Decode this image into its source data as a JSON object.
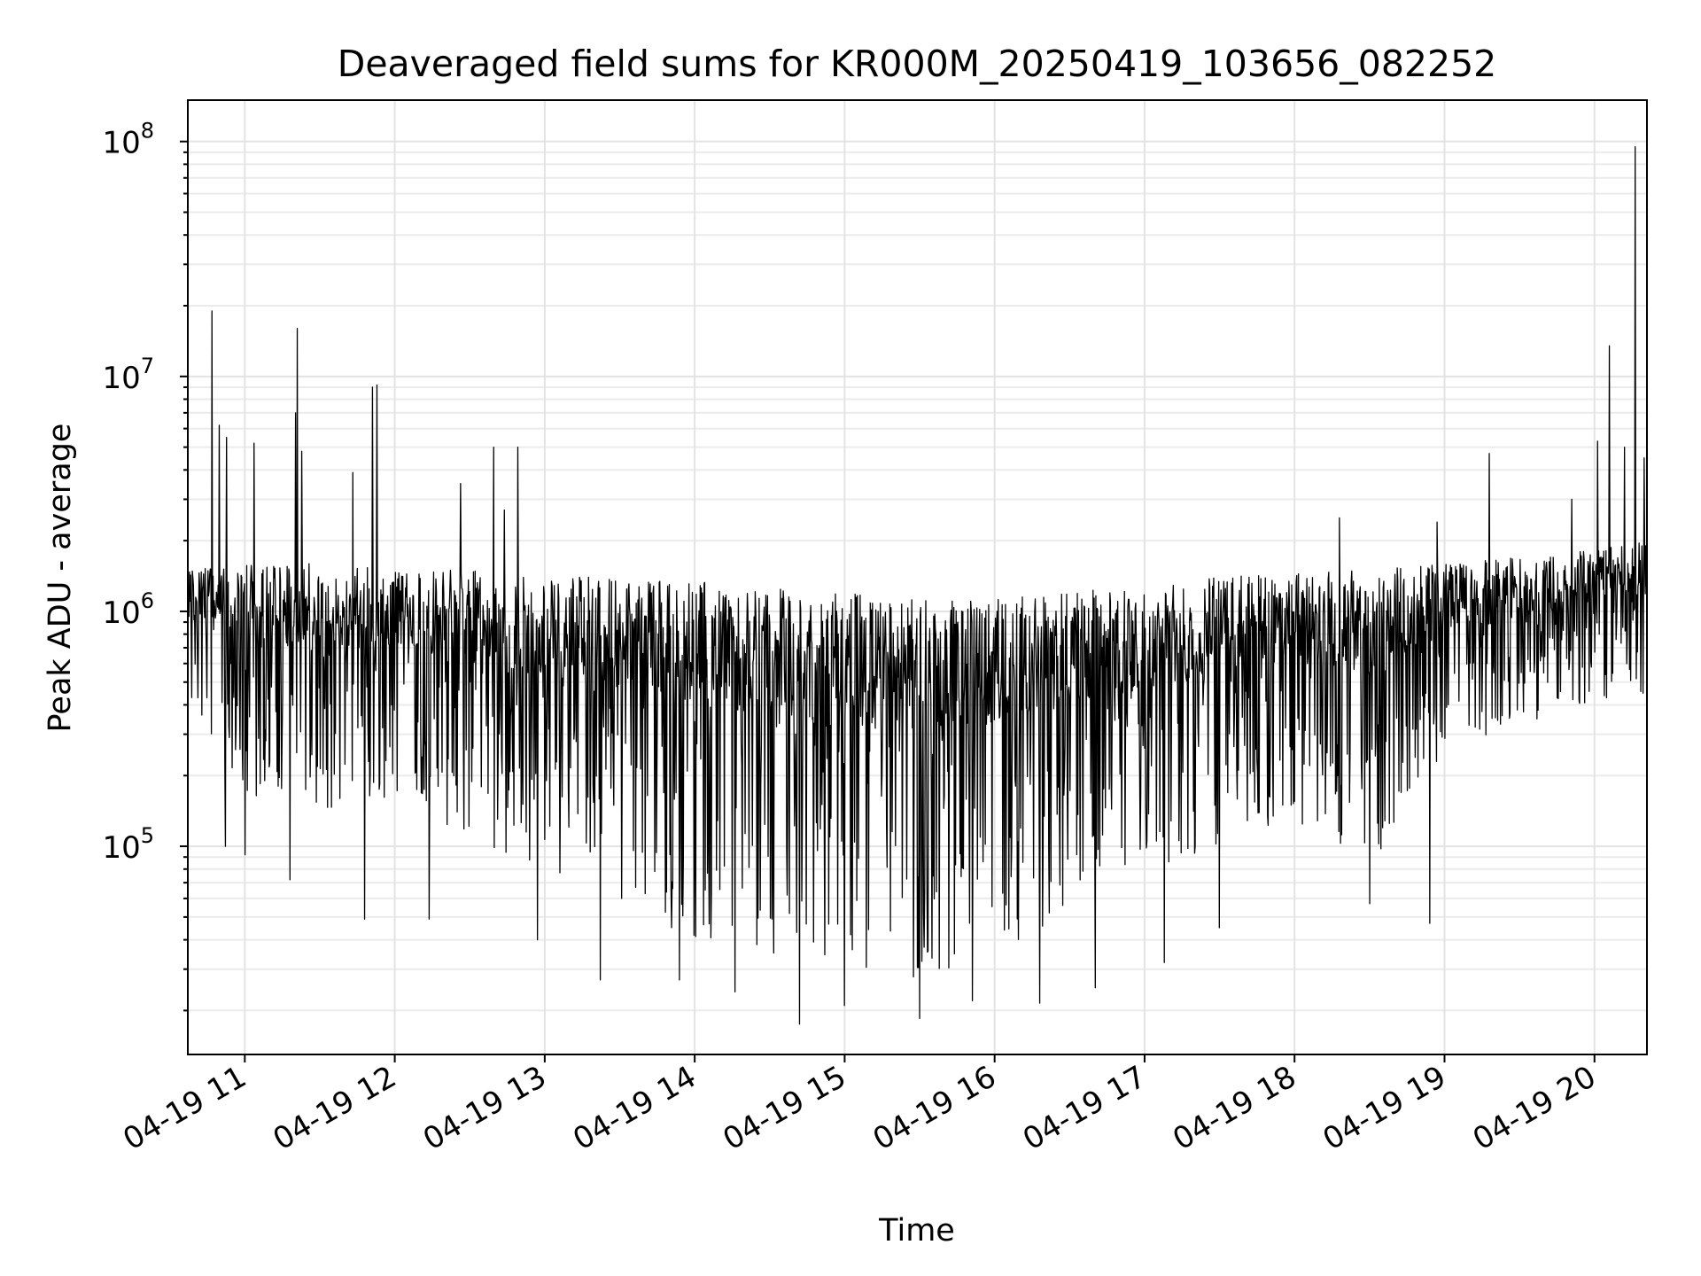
{
  "chart_data": {
    "type": "line",
    "title": "Deaveraged field sums for KR000M_20250419_103656_082252",
    "xlabel": "Time",
    "ylabel": "Peak ADU - average",
    "yscale": "log",
    "grid": true,
    "x_range": [
      "04-19 10:37",
      "04-19 20:21"
    ],
    "ylim": [
      13000,
      150000000
    ],
    "x_ticks": [
      {
        "label": "04-19 11",
        "hour": 11
      },
      {
        "label": "04-19 12",
        "hour": 12
      },
      {
        "label": "04-19 13",
        "hour": 13
      },
      {
        "label": "04-19 14",
        "hour": 14
      },
      {
        "label": "04-19 15",
        "hour": 15
      },
      {
        "label": "04-19 16",
        "hour": 16
      },
      {
        "label": "04-19 17",
        "hour": 17
      },
      {
        "label": "04-19 18",
        "hour": 18
      },
      {
        "label": "04-19 19",
        "hour": 19
      },
      {
        "label": "04-19 20",
        "hour": 20
      }
    ],
    "y_ticks": [
      {
        "base": "10",
        "exp": "5",
        "value": 100000
      },
      {
        "base": "10",
        "exp": "6",
        "value": 1000000
      },
      {
        "base": "10",
        "exp": "7",
        "value": 10000000
      },
      {
        "base": "10",
        "exp": "8",
        "value": 100000000
      }
    ],
    "series": [
      {
        "color": "#000000",
        "envelope": [
          {
            "hour": 10.62,
            "high": 1500000,
            "low": 400000
          },
          {
            "hour": 11.0,
            "high": 1600000,
            "low": 150000
          },
          {
            "hour": 11.5,
            "high": 1600000,
            "low": 130000
          },
          {
            "hour": 12.0,
            "high": 1500000,
            "low": 150000
          },
          {
            "hour": 12.5,
            "high": 1500000,
            "low": 110000
          },
          {
            "hour": 13.0,
            "high": 1400000,
            "low": 70000
          },
          {
            "hour": 13.5,
            "high": 1400000,
            "low": 55000
          },
          {
            "hour": 14.0,
            "high": 1350000,
            "low": 40000
          },
          {
            "hour": 14.5,
            "high": 1250000,
            "low": 32000
          },
          {
            "hour": 15.0,
            "high": 1200000,
            "low": 28000
          },
          {
            "hour": 15.5,
            "high": 1150000,
            "low": 27000
          },
          {
            "hour": 16.0,
            "high": 1150000,
            "low": 35000
          },
          {
            "hour": 16.5,
            "high": 1200000,
            "low": 50000
          },
          {
            "hour": 17.0,
            "high": 1300000,
            "low": 70000
          },
          {
            "hour": 17.5,
            "high": 1400000,
            "low": 100000
          },
          {
            "hour": 18.0,
            "high": 1500000,
            "low": 130000
          },
          {
            "hour": 18.5,
            "high": 1500000,
            "low": 80000
          },
          {
            "hour": 19.0,
            "high": 1600000,
            "low": 260000
          },
          {
            "hour": 19.5,
            "high": 1700000,
            "low": 300000
          },
          {
            "hour": 20.0,
            "high": 1900000,
            "low": 400000
          },
          {
            "hour": 20.35,
            "high": 2100000,
            "low": 450000
          }
        ],
        "spikes": [
          {
            "hour": 10.78,
            "value": 19000000
          },
          {
            "hour": 10.83,
            "value": 6200000
          },
          {
            "hour": 10.88,
            "value": 5500000
          },
          {
            "hour": 11.06,
            "value": 5200000
          },
          {
            "hour": 11.35,
            "value": 16000000
          },
          {
            "hour": 11.34,
            "value": 7000000
          },
          {
            "hour": 11.38,
            "value": 4800000
          },
          {
            "hour": 11.72,
            "value": 3900000
          },
          {
            "hour": 11.85,
            "value": 9000000
          },
          {
            "hour": 11.88,
            "value": 9200000
          },
          {
            "hour": 12.44,
            "value": 3500000
          },
          {
            "hour": 12.66,
            "value": 5000000
          },
          {
            "hour": 12.73,
            "value": 2700000
          },
          {
            "hour": 12.82,
            "value": 5000000
          },
          {
            "hour": 18.3,
            "value": 2500000
          },
          {
            "hour": 18.95,
            "value": 2400000
          },
          {
            "hour": 19.3,
            "value": 4700000
          },
          {
            "hour": 19.85,
            "value": 3000000
          },
          {
            "hour": 20.02,
            "value": 5300000
          },
          {
            "hour": 20.1,
            "value": 13500000
          },
          {
            "hour": 20.2,
            "value": 5000000
          },
          {
            "hour": 20.27,
            "value": 95000000
          },
          {
            "hour": 20.33,
            "value": 4500000
          }
        ],
        "dips": [
          {
            "hour": 10.87,
            "value": 100000
          },
          {
            "hour": 11.0,
            "value": 92000
          },
          {
            "hour": 11.3,
            "value": 72000
          },
          {
            "hour": 11.8,
            "value": 49000
          },
          {
            "hour": 12.23,
            "value": 49000
          },
          {
            "hour": 12.95,
            "value": 40000
          },
          {
            "hour": 13.37,
            "value": 27000
          },
          {
            "hour": 13.9,
            "value": 27000
          },
          {
            "hour": 14.27,
            "value": 24000
          },
          {
            "hour": 14.7,
            "value": 17500
          },
          {
            "hour": 15.0,
            "value": 21000
          },
          {
            "hour": 15.5,
            "value": 18500
          },
          {
            "hour": 15.85,
            "value": 22000
          },
          {
            "hour": 16.3,
            "value": 21500
          },
          {
            "hour": 16.67,
            "value": 25000
          },
          {
            "hour": 17.13,
            "value": 32000
          },
          {
            "hour": 17.5,
            "value": 45000
          },
          {
            "hour": 18.5,
            "value": 57000
          },
          {
            "hour": 18.9,
            "value": 47000
          }
        ]
      }
    ]
  }
}
